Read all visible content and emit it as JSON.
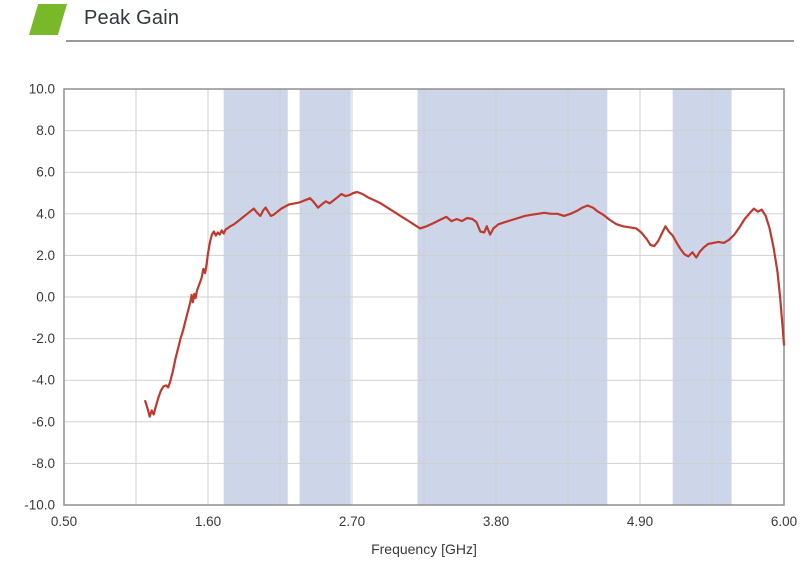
{
  "header": {
    "title": "Peak Gain",
    "accent_color": "#79b829"
  },
  "chart_data": {
    "type": "line",
    "title": "Peak Gain",
    "xlabel": "Frequency [GHz]",
    "ylabel": "",
    "xlim": [
      0.5,
      6.0
    ],
    "ylim": [
      -10,
      10
    ],
    "grid": true,
    "x_ticks": [
      0.5,
      1.6,
      2.7,
      3.8,
      4.9,
      6.0
    ],
    "x_tick_labels": [
      "0.50",
      "1.60",
      "2.70",
      "3.80",
      "4.90",
      "6.00"
    ],
    "x_minor_ticks": [
      1.05,
      2.15,
      3.25,
      4.35,
      5.45
    ],
    "y_ticks": [
      10,
      8,
      6,
      4,
      2,
      0,
      -2,
      -4,
      -6,
      -8,
      -10
    ],
    "y_tick_labels": [
      "10.0",
      "8.0",
      "6.0",
      "4.0",
      "2.0",
      "0.0",
      "-2.0",
      "-4.0",
      "-6.0",
      "-8.0",
      "-10.0"
    ],
    "shaded_bands": [
      [
        1.72,
        2.21
      ],
      [
        2.3,
        2.69
      ],
      [
        3.2,
        4.65
      ],
      [
        5.15,
        5.6
      ]
    ],
    "band_color": "#cdd6e9",
    "grid_color": "#cfcfcf",
    "border_color": "#8f8f8f",
    "text_color": "#3a3a3a",
    "line_color": "#bf3a2e",
    "series": [
      {
        "name": "Peak Gain",
        "x": [
          1.12,
          1.14,
          1.155,
          1.17,
          1.185,
          1.2,
          1.22,
          1.24,
          1.26,
          1.28,
          1.295,
          1.31,
          1.33,
          1.35,
          1.37,
          1.39,
          1.41,
          1.43,
          1.45,
          1.465,
          1.475,
          1.485,
          1.495,
          1.505,
          1.515,
          1.53,
          1.55,
          1.565,
          1.578,
          1.59,
          1.6,
          1.615,
          1.63,
          1.645,
          1.66,
          1.675,
          1.69,
          1.705,
          1.72,
          1.735,
          1.75,
          1.77,
          1.8,
          1.83,
          1.86,
          1.89,
          1.92,
          1.95,
          1.975,
          2.0,
          2.02,
          2.04,
          2.06,
          2.08,
          2.1,
          2.13,
          2.16,
          2.19,
          2.22,
          2.26,
          2.3,
          2.34,
          2.38,
          2.41,
          2.44,
          2.47,
          2.5,
          2.53,
          2.56,
          2.59,
          2.62,
          2.65,
          2.68,
          2.71,
          2.74,
          2.78,
          2.82,
          2.87,
          2.92,
          2.97,
          3.02,
          3.07,
          3.12,
          3.17,
          3.22,
          3.27,
          3.32,
          3.37,
          3.42,
          3.46,
          3.5,
          3.54,
          3.58,
          3.62,
          3.65,
          3.68,
          3.71,
          3.73,
          3.755,
          3.78,
          3.82,
          3.87,
          3.92,
          3.97,
          4.02,
          4.07,
          4.12,
          4.17,
          4.22,
          4.27,
          4.32,
          4.37,
          4.42,
          4.46,
          4.5,
          4.54,
          4.58,
          4.62,
          4.67,
          4.72,
          4.77,
          4.82,
          4.87,
          4.91,
          4.95,
          4.98,
          5.01,
          5.04,
          5.07,
          5.095,
          5.12,
          5.15,
          5.18,
          5.21,
          5.24,
          5.27,
          5.3,
          5.33,
          5.36,
          5.39,
          5.42,
          5.46,
          5.5,
          5.54,
          5.58,
          5.62,
          5.66,
          5.7,
          5.74,
          5.77,
          5.8,
          5.83,
          5.86,
          5.89,
          5.92,
          5.95,
          5.97,
          5.99,
          6.0
        ],
        "y": [
          -5.0,
          -5.4,
          -5.75,
          -5.45,
          -5.65,
          -5.3,
          -4.85,
          -4.5,
          -4.3,
          -4.25,
          -4.35,
          -4.1,
          -3.6,
          -3.0,
          -2.5,
          -2.0,
          -1.6,
          -1.1,
          -0.6,
          -0.25,
          0.1,
          -0.25,
          0.15,
          -0.05,
          0.3,
          0.55,
          0.9,
          1.35,
          1.15,
          1.6,
          2.1,
          2.65,
          3.0,
          3.15,
          2.95,
          3.1,
          3.0,
          3.2,
          3.05,
          3.25,
          3.3,
          3.4,
          3.5,
          3.65,
          3.8,
          3.95,
          4.1,
          4.25,
          4.05,
          3.9,
          4.15,
          4.3,
          4.1,
          3.9,
          3.95,
          4.1,
          4.25,
          4.35,
          4.45,
          4.5,
          4.55,
          4.65,
          4.75,
          4.55,
          4.3,
          4.45,
          4.6,
          4.5,
          4.65,
          4.8,
          4.95,
          4.85,
          4.9,
          5.0,
          5.05,
          4.95,
          4.8,
          4.65,
          4.5,
          4.3,
          4.1,
          3.9,
          3.7,
          3.5,
          3.3,
          3.4,
          3.55,
          3.7,
          3.85,
          3.65,
          3.75,
          3.65,
          3.8,
          3.75,
          3.6,
          3.15,
          3.1,
          3.4,
          3.0,
          3.3,
          3.5,
          3.6,
          3.7,
          3.8,
          3.9,
          3.95,
          4.0,
          4.05,
          4.0,
          4.0,
          3.9,
          4.0,
          4.15,
          4.3,
          4.4,
          4.3,
          4.1,
          3.95,
          3.7,
          3.5,
          3.4,
          3.35,
          3.3,
          3.1,
          2.8,
          2.5,
          2.45,
          2.7,
          3.1,
          3.4,
          3.15,
          2.95,
          2.6,
          2.3,
          2.05,
          1.95,
          2.15,
          1.9,
          2.2,
          2.4,
          2.55,
          2.6,
          2.65,
          2.6,
          2.75,
          3.0,
          3.35,
          3.75,
          4.05,
          4.25,
          4.1,
          4.2,
          3.9,
          3.3,
          2.4,
          1.2,
          0.0,
          -1.5,
          -2.3
        ]
      }
    ]
  }
}
